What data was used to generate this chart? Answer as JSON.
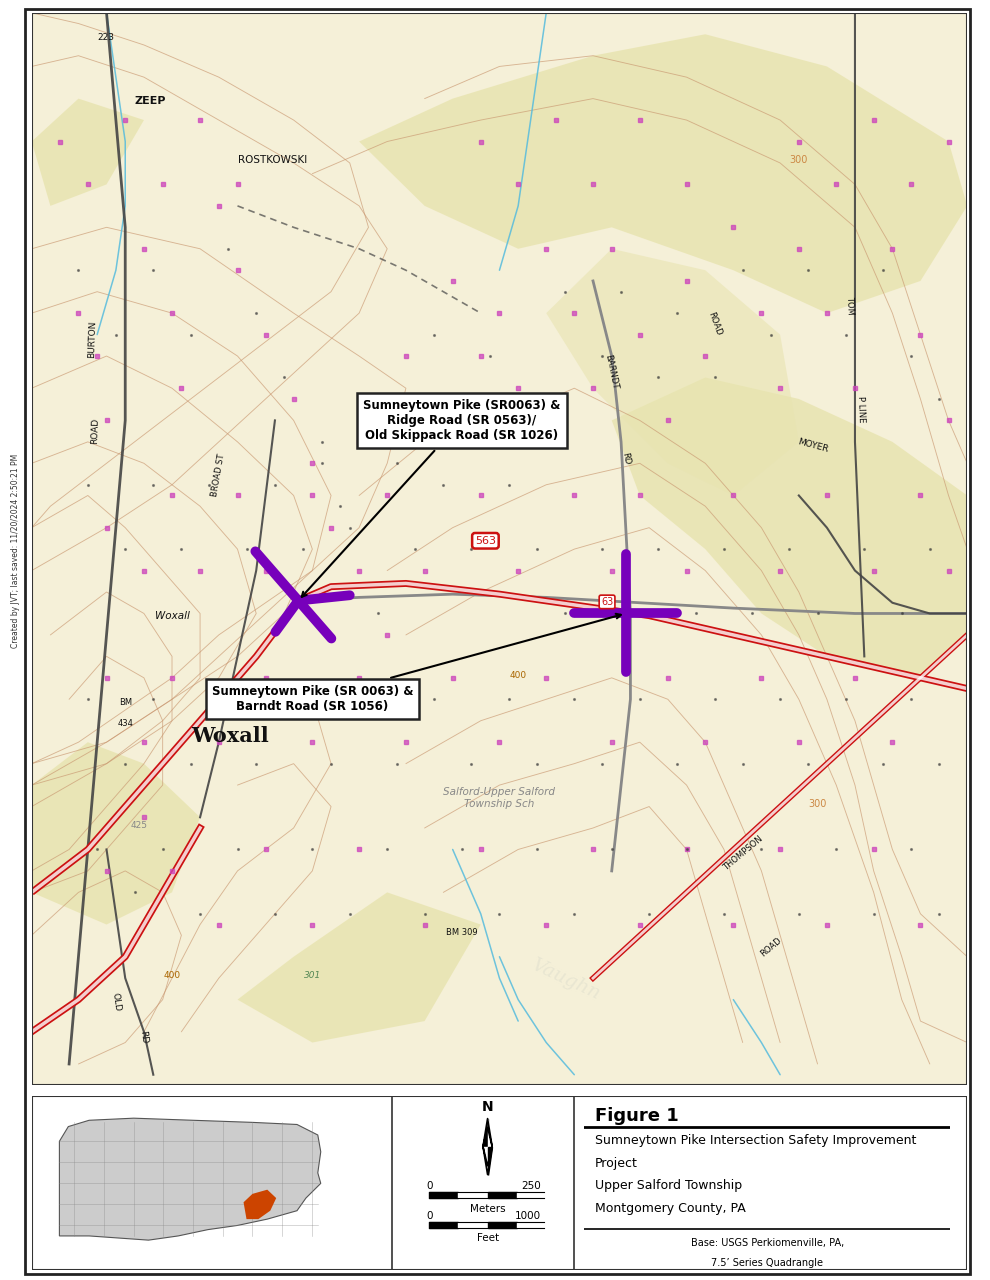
{
  "figure_title": "Figure 1",
  "figure_subtitle_lines": [
    "Sumneytown Pike Intersection Safety Improvement",
    "Project",
    "Upper Salford Township",
    "Montgomery County, PA"
  ],
  "base_source_line1": "Base: USGS Perkiomenville, PA,",
  "base_source_line2": "7.5’ Series Quadrangle",
  "created_by": "Created by JVT; last saved: 11/20/2024 2:50:21 PM",
  "map_bg": "#f5f0d8",
  "elevated_color": "#e8e4b0",
  "contour_color": "#c8956e",
  "stream_color": "#55bbdd",
  "road_red_color": "#cc1111",
  "road_gray_color": "#888888",
  "road_dark_color": "#444444",
  "purple_marker_color": "#7700bb",
  "purple_outline_color": "#550088",
  "magenta_dot_color": "#cc44bb",
  "black_dot_color": "#333333",
  "label_color": "#111111",
  "panel_bg": "#ffffff",
  "border_color": "#222222",
  "ann1_text": "Sumneytown Pike (SR0063) &\nRidge Road (SR 0563)/\nOld Skippack Road (SR 1026)",
  "ann2_text": "Sumneytown Pike (SR 0063) &\nBarndt Road (SR 1056)",
  "scale_0_meters": "0",
  "scale_250_meters": "250",
  "scale_label_meters": "Meters",
  "scale_0_feet": "0",
  "scale_1000_feet": "1000",
  "scale_label_feet": "Feet",
  "north_label": "N"
}
